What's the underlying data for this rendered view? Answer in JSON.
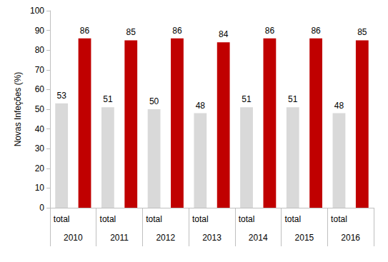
{
  "chart_data": {
    "type": "bar",
    "y_label": "Novas Infeções (%)",
    "categories": [
      "total",
      null,
      "total",
      null,
      "total",
      null,
      "total",
      null,
      "total",
      null,
      "total",
      null,
      "total",
      null
    ],
    "groups": [
      "2010",
      "2011",
      "2012",
      "2013",
      "2014",
      "2015",
      "2016"
    ],
    "values": [
      53,
      86,
      51,
      85,
      50,
      86,
      48,
      84,
      51,
      86,
      51,
      86,
      48,
      85
    ],
    "colors": [
      "#d9d9d9",
      "#c00000",
      "#d9d9d9",
      "#c00000",
      "#d9d9d9",
      "#c00000",
      "#d9d9d9",
      "#c00000",
      "#d9d9d9",
      "#c00000",
      "#d9d9d9",
      "#c00000",
      "#d9d9d9",
      "#c00000"
    ],
    "ylim": [
      0,
      100
    ],
    "yticks": [
      0,
      10,
      20,
      30,
      40,
      50,
      60,
      70,
      80,
      90,
      100
    ],
    "grid": false,
    "data_labels": true
  }
}
